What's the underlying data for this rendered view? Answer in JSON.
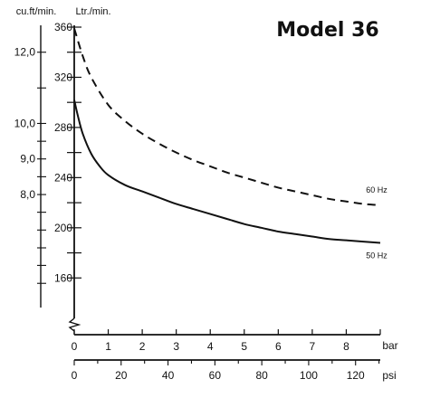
{
  "chart_data": {
    "type": "line",
    "title": "Model 36",
    "y_left_outer_label": "cu.ft/min.",
    "y_left_inner_label": "Ltr./min.",
    "y_outer_ticks": [
      "12,0",
      "10,0",
      "9,0",
      "8,0"
    ],
    "y_outer_tick_values": [
      340,
      283.2,
      254.9,
      226.5
    ],
    "y_inner_ticks": [
      360,
      320,
      280,
      240,
      200,
      160
    ],
    "ylim": [
      140,
      362
    ],
    "x_bar_label": "bar",
    "x_bar_ticks": [
      0,
      1,
      2,
      3,
      4,
      5,
      6,
      7,
      8
    ],
    "x_bar_lim": [
      0,
      9
    ],
    "x_psi_label": "psi",
    "x_psi_ticks": [
      0,
      20,
      40,
      60,
      80,
      100,
      120
    ],
    "series": [
      {
        "name": "60 Hz",
        "style": "dashed",
        "x": [
          0,
          0.25,
          0.5,
          1,
          1.5,
          2,
          2.5,
          3,
          3.5,
          4,
          4.5,
          5,
          5.5,
          6,
          6.5,
          7,
          7.5,
          8,
          8.5,
          9
        ],
        "y": [
          359,
          337,
          320,
          298,
          285,
          275,
          267,
          260,
          254,
          249,
          244,
          240,
          236,
          232,
          229,
          226,
          223,
          221,
          219,
          218
        ]
      },
      {
        "name": "50 Hz",
        "style": "solid",
        "x": [
          0,
          0.1,
          0.25,
          0.5,
          0.75,
          1,
          1.5,
          2,
          2.5,
          3,
          3.5,
          4,
          4.5,
          5,
          5.5,
          6,
          6.5,
          7,
          7.5,
          8,
          8.5,
          9
        ],
        "y": [
          302,
          290,
          275,
          259,
          249,
          242,
          234,
          229,
          224,
          219,
          215,
          211,
          207,
          203,
          200,
          197,
          195,
          193,
          191,
          190,
          189,
          188
        ]
      }
    ]
  }
}
